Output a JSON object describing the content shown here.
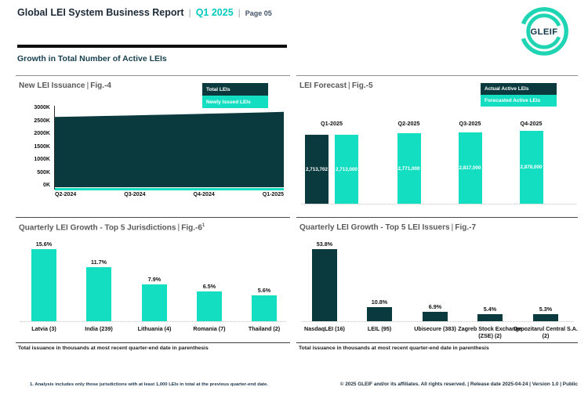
{
  "header": {
    "title": "Global LEI System Business Report",
    "sep": "|",
    "quarter": "Q1 2025",
    "page": "Page 05",
    "logo_text": "GLEIF"
  },
  "section_heading": "Growth in Total Number of Active LEIs",
  "colors": {
    "teal": "#13DEC2",
    "dark_teal": "#0B3A3E",
    "logo_teal": "#1FD4B3",
    "quarter_accent": "#06CABC"
  },
  "chart_data": [
    {
      "id": "fig4",
      "type": "area",
      "title": "New LEI Issuance",
      "fig_label": "Fig.-4",
      "legend": [
        "Total LEIs",
        "Newly Issued LEIs"
      ],
      "legend_position": "top-right",
      "x": [
        "Q2-2024",
        "Q3-2024",
        "Q4-2024",
        "Q1-2025"
      ],
      "yticks": [
        "3000K",
        "2500K",
        "2000K",
        "1500K",
        "1000K",
        "500K",
        "0K"
      ],
      "ylim_thousands": [
        0,
        3000
      ],
      "series": [
        {
          "name": "Total LEIs",
          "values_thousands_estimated": [
            2660,
            2725,
            2795,
            2860
          ]
        },
        {
          "name": "Newly Issued LEIs",
          "values_thousands_estimated": [
            75,
            80,
            88,
            95
          ]
        }
      ]
    },
    {
      "id": "fig5",
      "type": "bar",
      "title": "LEI Forecast",
      "fig_label": "Fig.-5",
      "legend": [
        "Actual Active LEIs",
        "Forecasted Active LEIs"
      ],
      "legend_position": "top-right",
      "categories": [
        "Q1-2025",
        "Q2-2025",
        "Q3-2025",
        "Q4-2025"
      ],
      "series": [
        {
          "name": "Actual Active LEIs",
          "values": [
            2713702,
            null,
            null,
            null
          ],
          "labels": [
            "2,713,702",
            null,
            null,
            null
          ]
        },
        {
          "name": "Forecasted Active LEIs",
          "values": [
            2713000,
            2771000,
            2817000,
            2878000
          ],
          "labels": [
            "2,713,000",
            "2,771,000",
            "2,817,000",
            "2,878,000"
          ]
        }
      ]
    },
    {
      "id": "fig6",
      "type": "bar",
      "title": "Quarterly LEI Growth - Top 5 Jurisdictions",
      "fig_label": "Fig.-6",
      "fig_sup": "1",
      "categories": [
        "Latvia (3)",
        "India (239)",
        "Lithuania (4)",
        "Romania (7)",
        "Thailand (2)"
      ],
      "values_percent": [
        15.6,
        11.7,
        7.9,
        6.5,
        5.6
      ],
      "labels": [
        "15.6%",
        "11.7%",
        "7.9%",
        "6.5%",
        "5.6%"
      ],
      "note": "Total issuance in thousands at most recent quarter-end date in parenthesis"
    },
    {
      "id": "fig7",
      "type": "bar",
      "title": "Quarterly LEI Growth - Top 5 LEI Issuers",
      "fig_label": "Fig.-7",
      "categories": [
        "NasdaqLEI (16)",
        "LEIL (95)",
        "Ubisecure (383)",
        "Zagreb Stock Exchange (ZSE) (2)",
        "Depozitarul Central S.A. (2)"
      ],
      "values_percent": [
        53.8,
        10.8,
        6.9,
        5.4,
        5.3
      ],
      "labels": [
        "53.8%",
        "10.8%",
        "6.9%",
        "5.4%",
        "5.3%"
      ],
      "note": "Total issuance in thousands at most recent quarter-end date in parenthesis"
    }
  ],
  "footnote": "1. Analysis includes only those jurisdictions with at least 1,000 LEIs in total at the previous quarter-end date.",
  "footer": "© 2025 GLEIF and/or its affiliates. All rights reserved. | Release date 2025-04-24 | Version 1.0 | Public"
}
